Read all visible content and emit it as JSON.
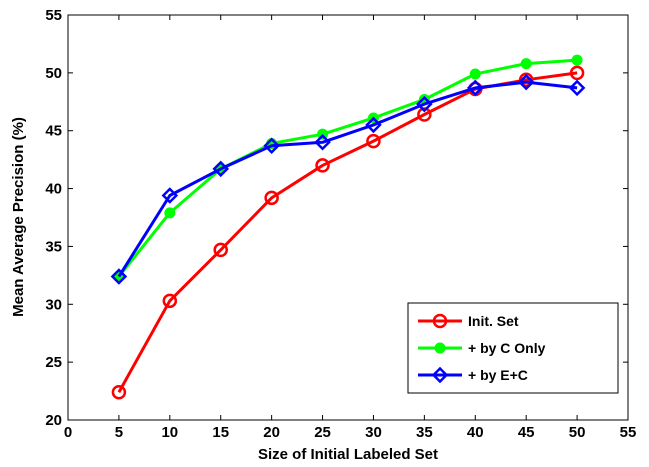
{
  "chart_data": {
    "type": "line",
    "title": "",
    "xlabel": "Size of Initial Labeled Set",
    "ylabel": "Mean Average Precision (%)",
    "xlim": [
      0,
      55
    ],
    "ylim": [
      20,
      55
    ],
    "xticks": [
      0,
      5,
      10,
      15,
      20,
      25,
      30,
      35,
      40,
      45,
      50,
      55
    ],
    "yticks": [
      20,
      25,
      30,
      35,
      40,
      45,
      50,
      55
    ],
    "grid": false,
    "legend_position": "bottom-right",
    "x": [
      5,
      10,
      15,
      20,
      25,
      30,
      35,
      40,
      45,
      50
    ],
    "series": [
      {
        "name": "Init. Set",
        "color": "#ff0000",
        "marker": "circle",
        "values": [
          22.4,
          30.3,
          34.7,
          39.2,
          42.0,
          44.1,
          46.4,
          48.6,
          49.4,
          50.0
        ]
      },
      {
        "name": "+ by C Only",
        "color": "#00ff00",
        "marker": "filled-circle",
        "values": [
          32.4,
          37.9,
          41.7,
          43.9,
          44.7,
          46.1,
          47.7,
          49.9,
          50.8,
          51.1
        ]
      },
      {
        "name": "+ by E+C",
        "color": "#0000ff",
        "marker": "diamond",
        "values": [
          32.4,
          39.4,
          41.7,
          43.7,
          44.0,
          45.5,
          47.3,
          48.7,
          49.2,
          48.7
        ]
      }
    ]
  }
}
